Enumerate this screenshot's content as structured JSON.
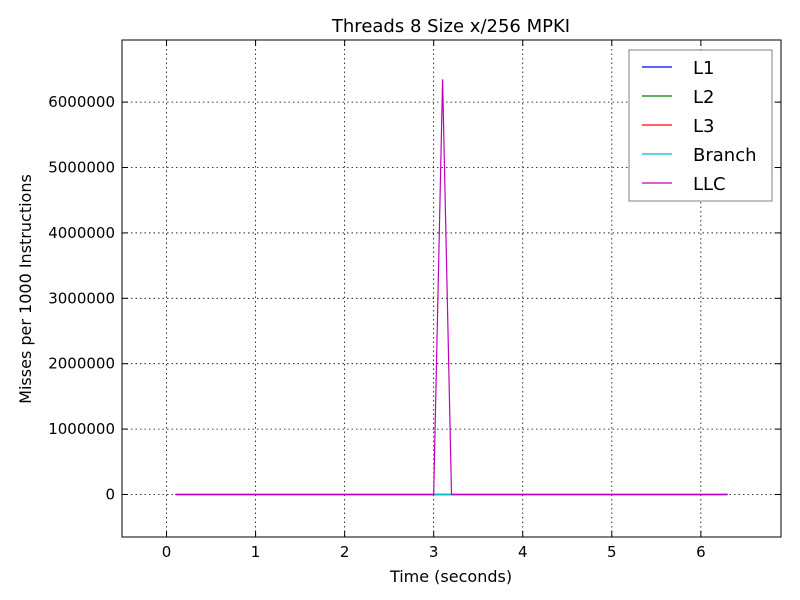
{
  "chart_data": {
    "type": "line",
    "title": "Threads 8 Size x/256 MPKI",
    "xlabel": "Time (seconds)",
    "ylabel": "Misses per 1000 Instructions",
    "xlim": [
      -0.5,
      6.9
    ],
    "ylim": [
      -650000,
      6950000
    ],
    "xticks": [
      0,
      1,
      2,
      3,
      4,
      5,
      6
    ],
    "xtick_labels": [
      "0",
      "1",
      "2",
      "3",
      "4",
      "5",
      "6"
    ],
    "yticks": [
      0,
      1000000,
      2000000,
      3000000,
      4000000,
      5000000,
      6000000
    ],
    "ytick_labels": [
      "0",
      "1000000",
      "2000000",
      "3000000",
      "4000000",
      "5000000",
      "6000000"
    ],
    "grid": true,
    "legend_position": "top-right",
    "series": [
      {
        "name": "L1",
        "color": "#0000ff",
        "x": [
          0.1,
          3.0,
          3.1,
          3.2,
          6.3
        ],
        "y": [
          0,
          0,
          0,
          0,
          0
        ]
      },
      {
        "name": "L2",
        "color": "#008000",
        "x": [
          0.1,
          3.0,
          3.1,
          3.2,
          6.3
        ],
        "y": [
          0,
          0,
          0,
          0,
          0
        ]
      },
      {
        "name": "L3",
        "color": "#ff0000",
        "x": [
          0.1,
          3.0,
          3.1,
          3.2,
          6.3
        ],
        "y": [
          0,
          0,
          0,
          0,
          0
        ]
      },
      {
        "name": "Branch",
        "color": "#00bfbf",
        "x": [
          0.1,
          3.0,
          3.1,
          3.2,
          6.3
        ],
        "y": [
          0,
          0,
          0,
          0,
          0
        ]
      },
      {
        "name": "LLC",
        "color": "#bf00bf",
        "x": [
          0.1,
          3.0,
          3.1,
          3.2,
          6.3
        ],
        "y": [
          0,
          0,
          6350000,
          0,
          0
        ]
      }
    ]
  }
}
